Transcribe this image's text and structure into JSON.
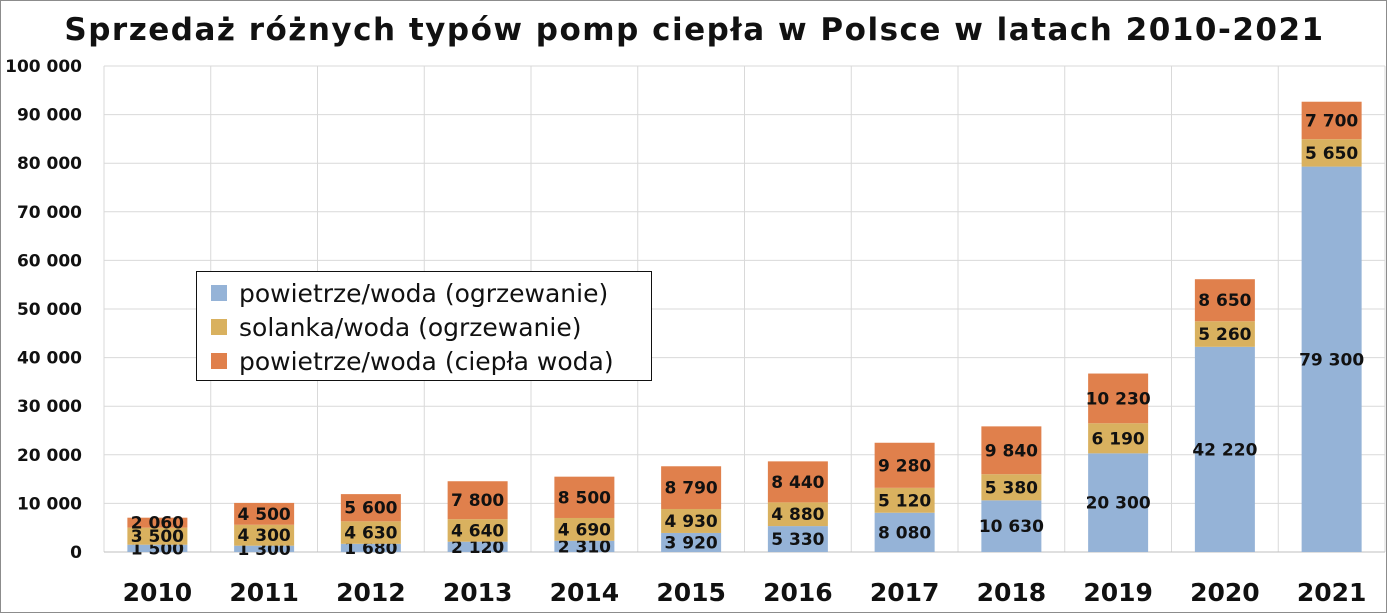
{
  "chart_data": {
    "type": "bar",
    "stacked": true,
    "title": "Sprzedaż różnych typów pomp ciepła w Polsce w latach 2010-2021",
    "xlabel": "",
    "ylabel": "",
    "categories": [
      "2010",
      "2011",
      "2012",
      "2013",
      "2014",
      "2015",
      "2016",
      "2017",
      "2018",
      "2019",
      "2020",
      "2021"
    ],
    "ylim": [
      0,
      100000
    ],
    "yticks": [
      0,
      10000,
      20000,
      30000,
      40000,
      50000,
      60000,
      70000,
      80000,
      90000,
      100000
    ],
    "ytick_labels": [
      "0",
      "10 000",
      "20 000",
      "30 000",
      "40 000",
      "50 000",
      "60 000",
      "70 000",
      "80 000",
      "90 000",
      "100 000"
    ],
    "grid": true,
    "legend_position": "left-middle",
    "series": [
      {
        "name": "powietrze/woda (ogrzewanie)",
        "color": "#95b3d7",
        "values": [
          1500,
          1300,
          1680,
          2120,
          2310,
          3920,
          5330,
          8080,
          10630,
          20300,
          42220,
          79300
        ],
        "labels": [
          "1 500",
          "1 300",
          "1 680",
          "2 120",
          "2 310",
          "3 920",
          "5 330",
          "8 080",
          "10 630",
          "20 300",
          "42 220",
          "79 300"
        ]
      },
      {
        "name": "solanka/woda (ogrzewanie)",
        "color": "#d9b15f",
        "values": [
          3500,
          4300,
          4630,
          4640,
          4690,
          4930,
          4880,
          5120,
          5380,
          6190,
          5260,
          5650
        ],
        "labels": [
          "3 500",
          "4 300",
          "4 630",
          "4 640",
          "4 690",
          "4 930",
          "4 880",
          "5 120",
          "5 380",
          "6 190",
          "5 260",
          "5 650"
        ]
      },
      {
        "name": "powietrze/woda (ciepła woda)",
        "color": "#e0804c",
        "values": [
          2060,
          4500,
          5600,
          7800,
          8500,
          8790,
          8440,
          9280,
          9840,
          10230,
          8650,
          7700
        ],
        "labels": [
          "2 060",
          "4 500",
          "5 600",
          "7 800",
          "8 500",
          "8 790",
          "8 440",
          "9 280",
          "9 840",
          "10 230",
          "8 650",
          "7 700"
        ]
      }
    ]
  }
}
